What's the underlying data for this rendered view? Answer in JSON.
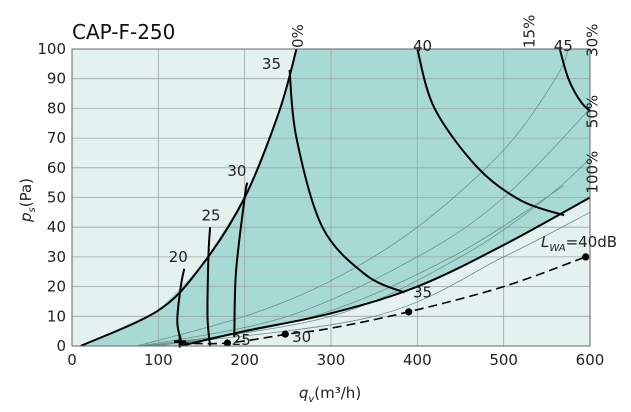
{
  "chart_data": {
    "type": "line",
    "title": "CAP-F-250",
    "xlabel": "q",
    "xlabel_sub": "v",
    "xlabel_unit": "(m³/h)",
    "ylabel": "p",
    "ylabel_sub": "s",
    "ylabel_unit": "(Pa)",
    "xlim": [
      0,
      600
    ],
    "ylim": [
      0,
      100
    ],
    "xticks": [
      0,
      100,
      200,
      300,
      400,
      500,
      600
    ],
    "yticks": [
      0,
      10,
      20,
      30,
      40,
      50,
      60,
      70,
      80,
      90,
      100
    ],
    "grid": true,
    "colors": {
      "operating_area": "#a7dad5",
      "outer_area": "#e3f1ef",
      "curve": "#000000",
      "thin_line": "#6a8f8b"
    },
    "opening_curves": [
      {
        "label": "0%",
        "points": [
          [
            10,
            0
          ],
          [
            100,
            12
          ],
          [
            150,
            27
          ],
          [
            200,
            50
          ],
          [
            240,
            79
          ],
          [
            260,
            100
          ]
        ]
      },
      {
        "label": "15%",
        "points": [
          [
            75,
            0
          ],
          [
            200,
            10
          ],
          [
            300,
            22
          ],
          [
            400,
            40
          ],
          [
            500,
            66
          ],
          [
            560,
            90
          ],
          [
            575,
            100
          ]
        ]
      },
      {
        "label": "30%",
        "points": [
          [
            80,
            0
          ],
          [
            250,
            10
          ],
          [
            400,
            30
          ],
          [
            500,
            50
          ],
          [
            600,
            80
          ],
          [
            610,
            85
          ]
        ]
      },
      {
        "label": "50%",
        "points": [
          [
            85,
            0
          ],
          [
            300,
            10
          ],
          [
            450,
            30
          ],
          [
            550,
            50
          ],
          [
            610,
            66
          ]
        ]
      },
      {
        "label": "100%",
        "points": [
          [
            90,
            0
          ],
          [
            350,
            10
          ],
          [
            500,
            30
          ],
          [
            600,
            45
          ]
        ]
      },
      {
        "label": "",
        "points": [
          [
            100,
            0
          ],
          [
            280,
            10
          ],
          [
            440,
            30
          ],
          [
            570,
            54
          ]
        ]
      }
    ],
    "lower_boundary": [
      [
        125,
        0
      ],
      [
        200,
        5
      ],
      [
        300,
        11
      ],
      [
        400,
        20
      ],
      [
        500,
        34
      ],
      [
        600,
        50
      ]
    ],
    "sound_curves": [
      {
        "label": "20",
        "points": [
          [
            128,
            0
          ],
          [
            122,
            8
          ],
          [
            126,
            20
          ],
          [
            130,
            26
          ]
        ]
      },
      {
        "label": "25",
        "points": [
          [
            160,
            0
          ],
          [
            157,
            10
          ],
          [
            158,
            30
          ],
          [
            160,
            40
          ]
        ]
      },
      {
        "label": "30",
        "points": [
          [
            188,
            3
          ],
          [
            190,
            25
          ],
          [
            200,
            50
          ],
          [
            203,
            55
          ]
        ]
      },
      {
        "label": "35",
        "points": [
          [
            252,
            93
          ],
          [
            260,
            70
          ],
          [
            290,
            40
          ],
          [
            340,
            24
          ],
          [
            385,
            18
          ]
        ]
      },
      {
        "label": "40",
        "points": [
          [
            400,
            100
          ],
          [
            420,
            80
          ],
          [
            470,
            60
          ],
          [
            520,
            49
          ],
          [
            570,
            44
          ]
        ]
      },
      {
        "label": "45",
        "points": [
          [
            565,
            100
          ],
          [
            575,
            90
          ],
          [
            590,
            82
          ],
          [
            605,
            78
          ]
        ]
      }
    ],
    "sound_labels": [
      {
        "text": "20",
        "x": 112,
        "y": 30
      },
      {
        "text": "25",
        "x": 150,
        "y": 44
      },
      {
        "text": "30",
        "x": 180,
        "y": 59
      },
      {
        "text": "35",
        "x": 220,
        "y": 95
      },
      {
        "text": "40",
        "x": 395,
        "y": 101
      },
      {
        "text": "45",
        "x": 558,
        "y": 101
      },
      {
        "text": "35",
        "x": 395,
        "y": 18
      },
      {
        "text": "25",
        "x": 185,
        "y": 2
      },
      {
        "text": "30",
        "x": 255,
        "y": 3
      }
    ],
    "opening_labels": [
      {
        "text": "0%",
        "x": 262,
        "y": 101
      },
      {
        "text": "15%",
        "x": 530,
        "y": 101
      },
      {
        "text": "30%",
        "x": 603,
        "y": 98
      },
      {
        "text": "50%",
        "x": 603,
        "y": 74
      },
      {
        "text": "100%",
        "x": 603,
        "y": 52
      }
    ],
    "lwa_curve": {
      "label": "L",
      "label_sub": "WA",
      "label_value": "=40dB",
      "points": [
        [
          125,
          1
        ],
        [
          180,
          1
        ],
        [
          250,
          4
        ],
        [
          300,
          6
        ],
        [
          390,
          11.5
        ],
        [
          500,
          20
        ],
        [
          595,
          30
        ]
      ],
      "markers": [
        [
          180,
          1
        ],
        [
          247,
          4
        ],
        [
          390,
          11.5
        ],
        [
          595,
          30
        ]
      ],
      "start_marker": [
        125,
        1.5
      ]
    }
  }
}
